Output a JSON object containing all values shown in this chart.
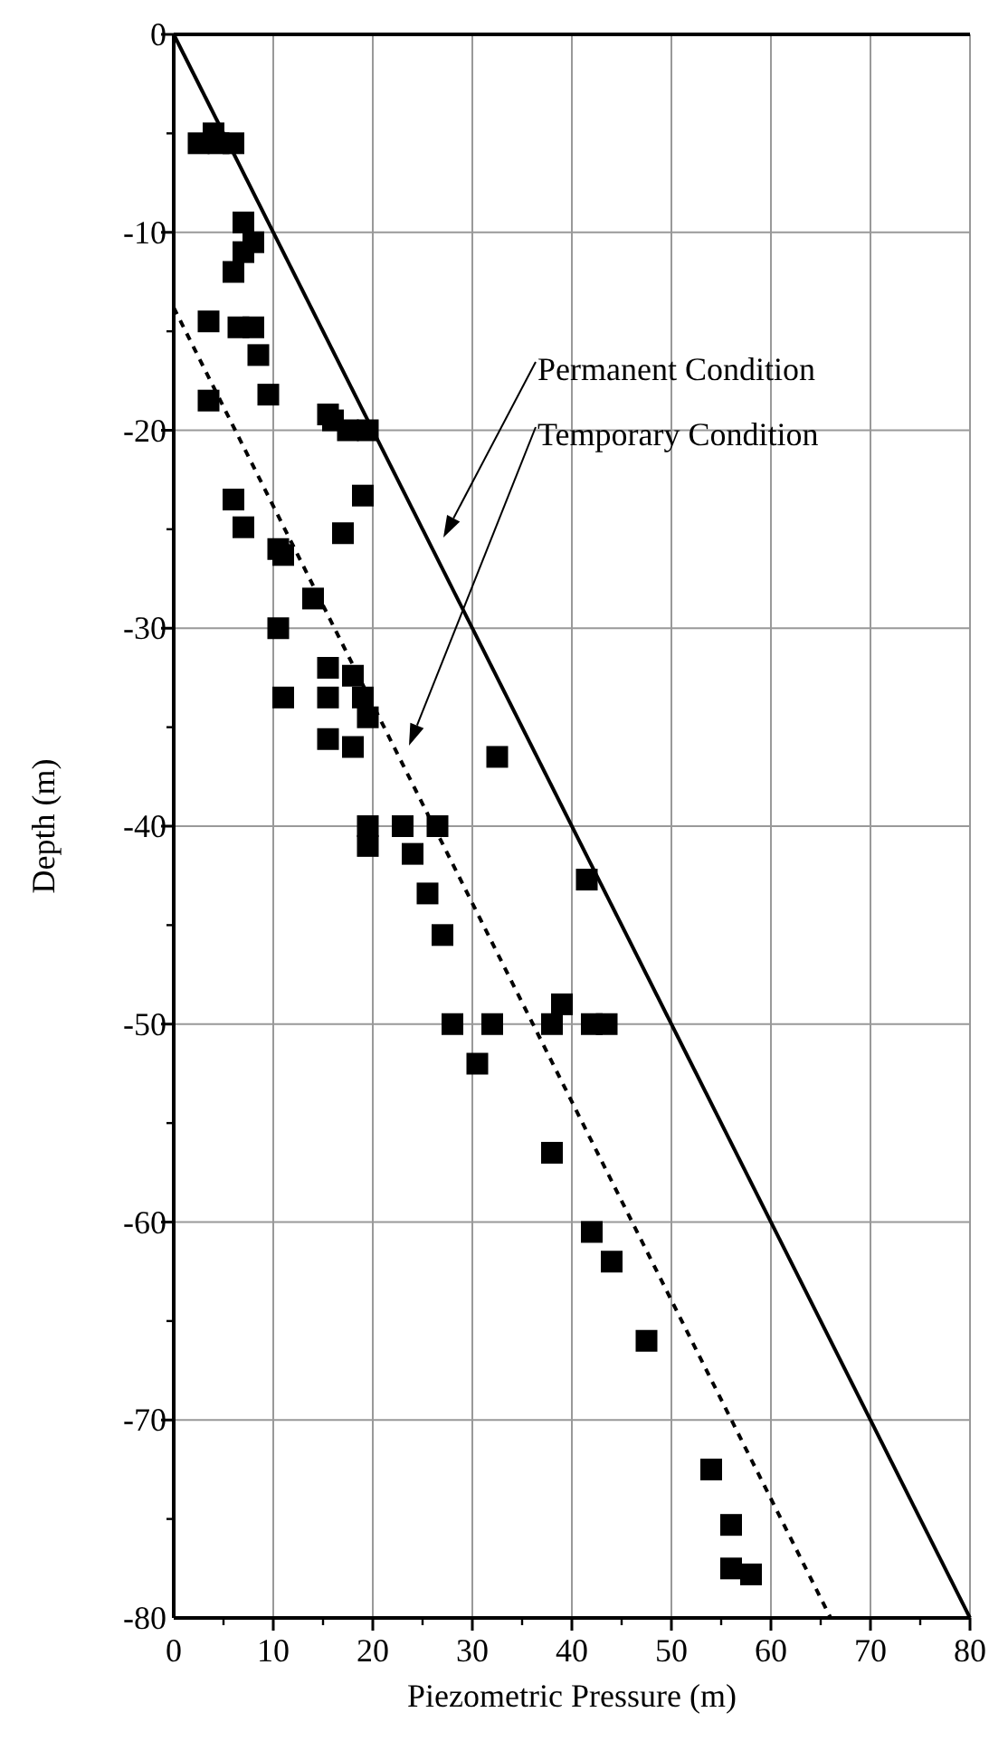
{
  "chart_data": {
    "type": "scatter",
    "xlabel": "Piezometric Pressure (m)",
    "ylabel": "Depth (m)",
    "xlim": [
      0,
      80
    ],
    "xticks": [
      0,
      10,
      20,
      30,
      40,
      50,
      60,
      70,
      80
    ],
    "ylim": [
      -80,
      0
    ],
    "yticks": [
      -80,
      -70,
      -60,
      -50,
      -40,
      -30,
      -20,
      -10,
      0
    ],
    "grid": true,
    "series": [
      {
        "type": "line",
        "color": "#000000",
        "line_style": "solid",
        "marker": "none",
        "x": [
          0,
          80
        ],
        "values": [
          0,
          -80
        ]
      },
      {
        "type": "line",
        "color": "#000000",
        "line_style": "dashed",
        "marker": "none",
        "x": [
          0,
          66
        ],
        "values": [
          -13.8,
          -80
        ]
      },
      {
        "color": "#000000",
        "marker": "square",
        "x": [
          2.5,
          4,
          4.5,
          6,
          7,
          7,
          8,
          6,
          3.5,
          6.5,
          8,
          8.5,
          3.5,
          9.5,
          15.5,
          16,
          17.5,
          19.5,
          19,
          6,
          7,
          17,
          10.5,
          11,
          14,
          10.5,
          15.5,
          15.5,
          11,
          18,
          19,
          19.5,
          15.5,
          18,
          32.5,
          19.5,
          19.5,
          23,
          26.5,
          24,
          25.5,
          27,
          41.5,
          28,
          32,
          38,
          39,
          42,
          43.5,
          30.5,
          38,
          42,
          44,
          47.5,
          54,
          56,
          56,
          58
        ],
        "values": [
          -5.5,
          -5,
          -5.5,
          -5.5,
          -9.5,
          -11,
          -10.5,
          -12,
          -14.5,
          -14.8,
          -14.8,
          -16.2,
          -18.5,
          -18.2,
          -19.2,
          -19.5,
          -20,
          -20,
          -23.3,
          -23.5,
          -24.9,
          -25.2,
          -26,
          -26.3,
          -28.5,
          -30,
          -32,
          -33.5,
          -33.5,
          -32.4,
          -33.5,
          -34.5,
          -35.6,
          -36,
          -36.5,
          -40,
          -41,
          -40,
          -40,
          -41.4,
          -43.4,
          -45.5,
          -42.7,
          -50,
          -50,
          -50,
          -49,
          -50,
          -50,
          -52,
          -56.5,
          -60.5,
          -62,
          -66,
          -72.5,
          -75.3,
          -77.5,
          -77.8
        ]
      }
    ],
    "annotations": [
      "Permanent Condition",
      "Temporary Condition"
    ]
  }
}
